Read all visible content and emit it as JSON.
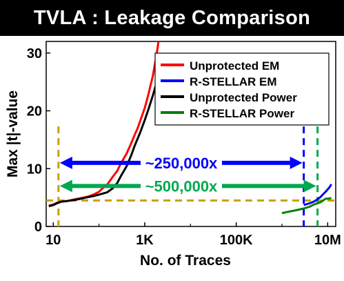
{
  "title": "TVLA : Leakage Comparison",
  "chart_data": {
    "type": "line",
    "xscale": "log",
    "xlabel": "No. of Traces",
    "ylabel": "Max |t|-value",
    "xlim": [
      7,
      15000000
    ],
    "ylim": [
      0,
      32
    ],
    "xticks": [
      10,
      1000,
      100000,
      10000000
    ],
    "xtick_labels": [
      "10",
      "1K",
      "100K",
      "10M"
    ],
    "yticks": [
      0,
      10,
      20,
      30
    ],
    "ytick_labels": [
      "0",
      "10",
      "20",
      "30"
    ],
    "legend_position": "top-right",
    "series": [
      {
        "name": "Unprotected EM",
        "color": "#ff0000",
        "x": [
          8,
          10,
          12,
          15,
          20,
          30,
          40,
          60,
          80,
          100,
          120,
          150,
          200,
          250,
          300,
          400,
          500,
          600,
          700,
          800,
          1000,
          1200,
          1500,
          1800,
          2000
        ],
        "y": [
          3.6,
          3.8,
          4.1,
          4.3,
          4.4,
          4.7,
          4.9,
          5.2,
          5.6,
          6.0,
          6.6,
          7.2,
          8.6,
          9.6,
          10.9,
          12.6,
          14.3,
          15.8,
          17.0,
          18.3,
          20.5,
          22.8,
          26.0,
          29.5,
          32
        ]
      },
      {
        "name": "R-STELLAR EM",
        "color": "#0000ff",
        "x": [
          3000000,
          4000000,
          5000000,
          6000000,
          7000000,
          8000000,
          9000000,
          10000000,
          11000000,
          12000000
        ],
        "y": [
          3.7,
          4.0,
          4.3,
          4.7,
          5.1,
          5.6,
          6.0,
          6.4,
          6.8,
          7.3
        ]
      },
      {
        "name": "Unprotected Power",
        "color": "#000000",
        "x": [
          8,
          10,
          12,
          15,
          20,
          30,
          40,
          60,
          80,
          100,
          150,
          200,
          250,
          300,
          400,
          500,
          600,
          800,
          1000,
          1200,
          1500,
          1800,
          2000
        ],
        "y": [
          3.5,
          3.7,
          4.0,
          4.3,
          4.4,
          4.6,
          4.8,
          5.1,
          5.3,
          5.5,
          5.9,
          6.6,
          7.5,
          8.7,
          10.4,
          12.2,
          13.9,
          16.3,
          18.4,
          20.2,
          22.6,
          24.8,
          26.5
        ]
      },
      {
        "name": "R-STELLAR Power",
        "color": "#008000",
        "x": [
          1000000,
          1500000,
          2000000,
          3000000,
          4000000,
          5000000,
          6000000,
          7000000,
          8000000,
          9000000,
          10000000,
          12000000
        ],
        "y": [
          2.3,
          2.6,
          2.8,
          3.1,
          3.4,
          3.8,
          4.0,
          4.2,
          4.5,
          4.8,
          4.8,
          4.9
        ]
      }
    ],
    "reference_lines": [
      {
        "orientation": "horizontal",
        "y": 4.5,
        "color": "#c8a000",
        "style": "dashed"
      },
      {
        "orientation": "vertical",
        "x": 13,
        "color": "#c8a000",
        "style": "dashed"
      },
      {
        "orientation": "vertical",
        "x": 3000000,
        "color": "#0000ff",
        "style": "dashed"
      },
      {
        "orientation": "vertical",
        "x": 6000000,
        "color": "#00a850",
        "style": "dashed"
      }
    ],
    "annotations": [
      {
        "text": "~250,000x",
        "x_from": 13,
        "x_to": 3000000,
        "y": 11,
        "color": "#0000ff"
      },
      {
        "text": "~500,000x",
        "x_from": 13,
        "x_to": 6000000,
        "y": 7,
        "color": "#00a850"
      }
    ]
  }
}
